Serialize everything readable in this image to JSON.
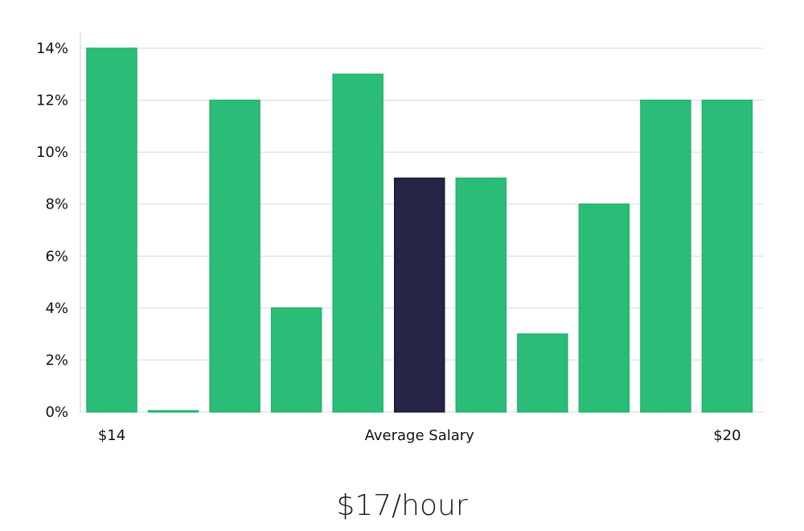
{
  "chart_data": {
    "type": "bar",
    "categories": [
      "$14",
      "",
      "",
      "",
      "",
      "Average Salary",
      "",
      "",
      "",
      "",
      "$20"
    ],
    "values": [
      14,
      0,
      12,
      4,
      13,
      9,
      9,
      3,
      8,
      12,
      12
    ],
    "highlight_index": 5,
    "ylim": [
      0,
      14
    ],
    "yticks": [
      0,
      2,
      4,
      6,
      8,
      10,
      12,
      14
    ],
    "ytick_suffix": "%",
    "grid": true,
    "colors": {
      "bar": "#2bbd77",
      "bar_edge": "#20b46c",
      "highlight": "#272546",
      "highlight_edge": "#1a1838"
    }
  },
  "caption": "$17/hour"
}
